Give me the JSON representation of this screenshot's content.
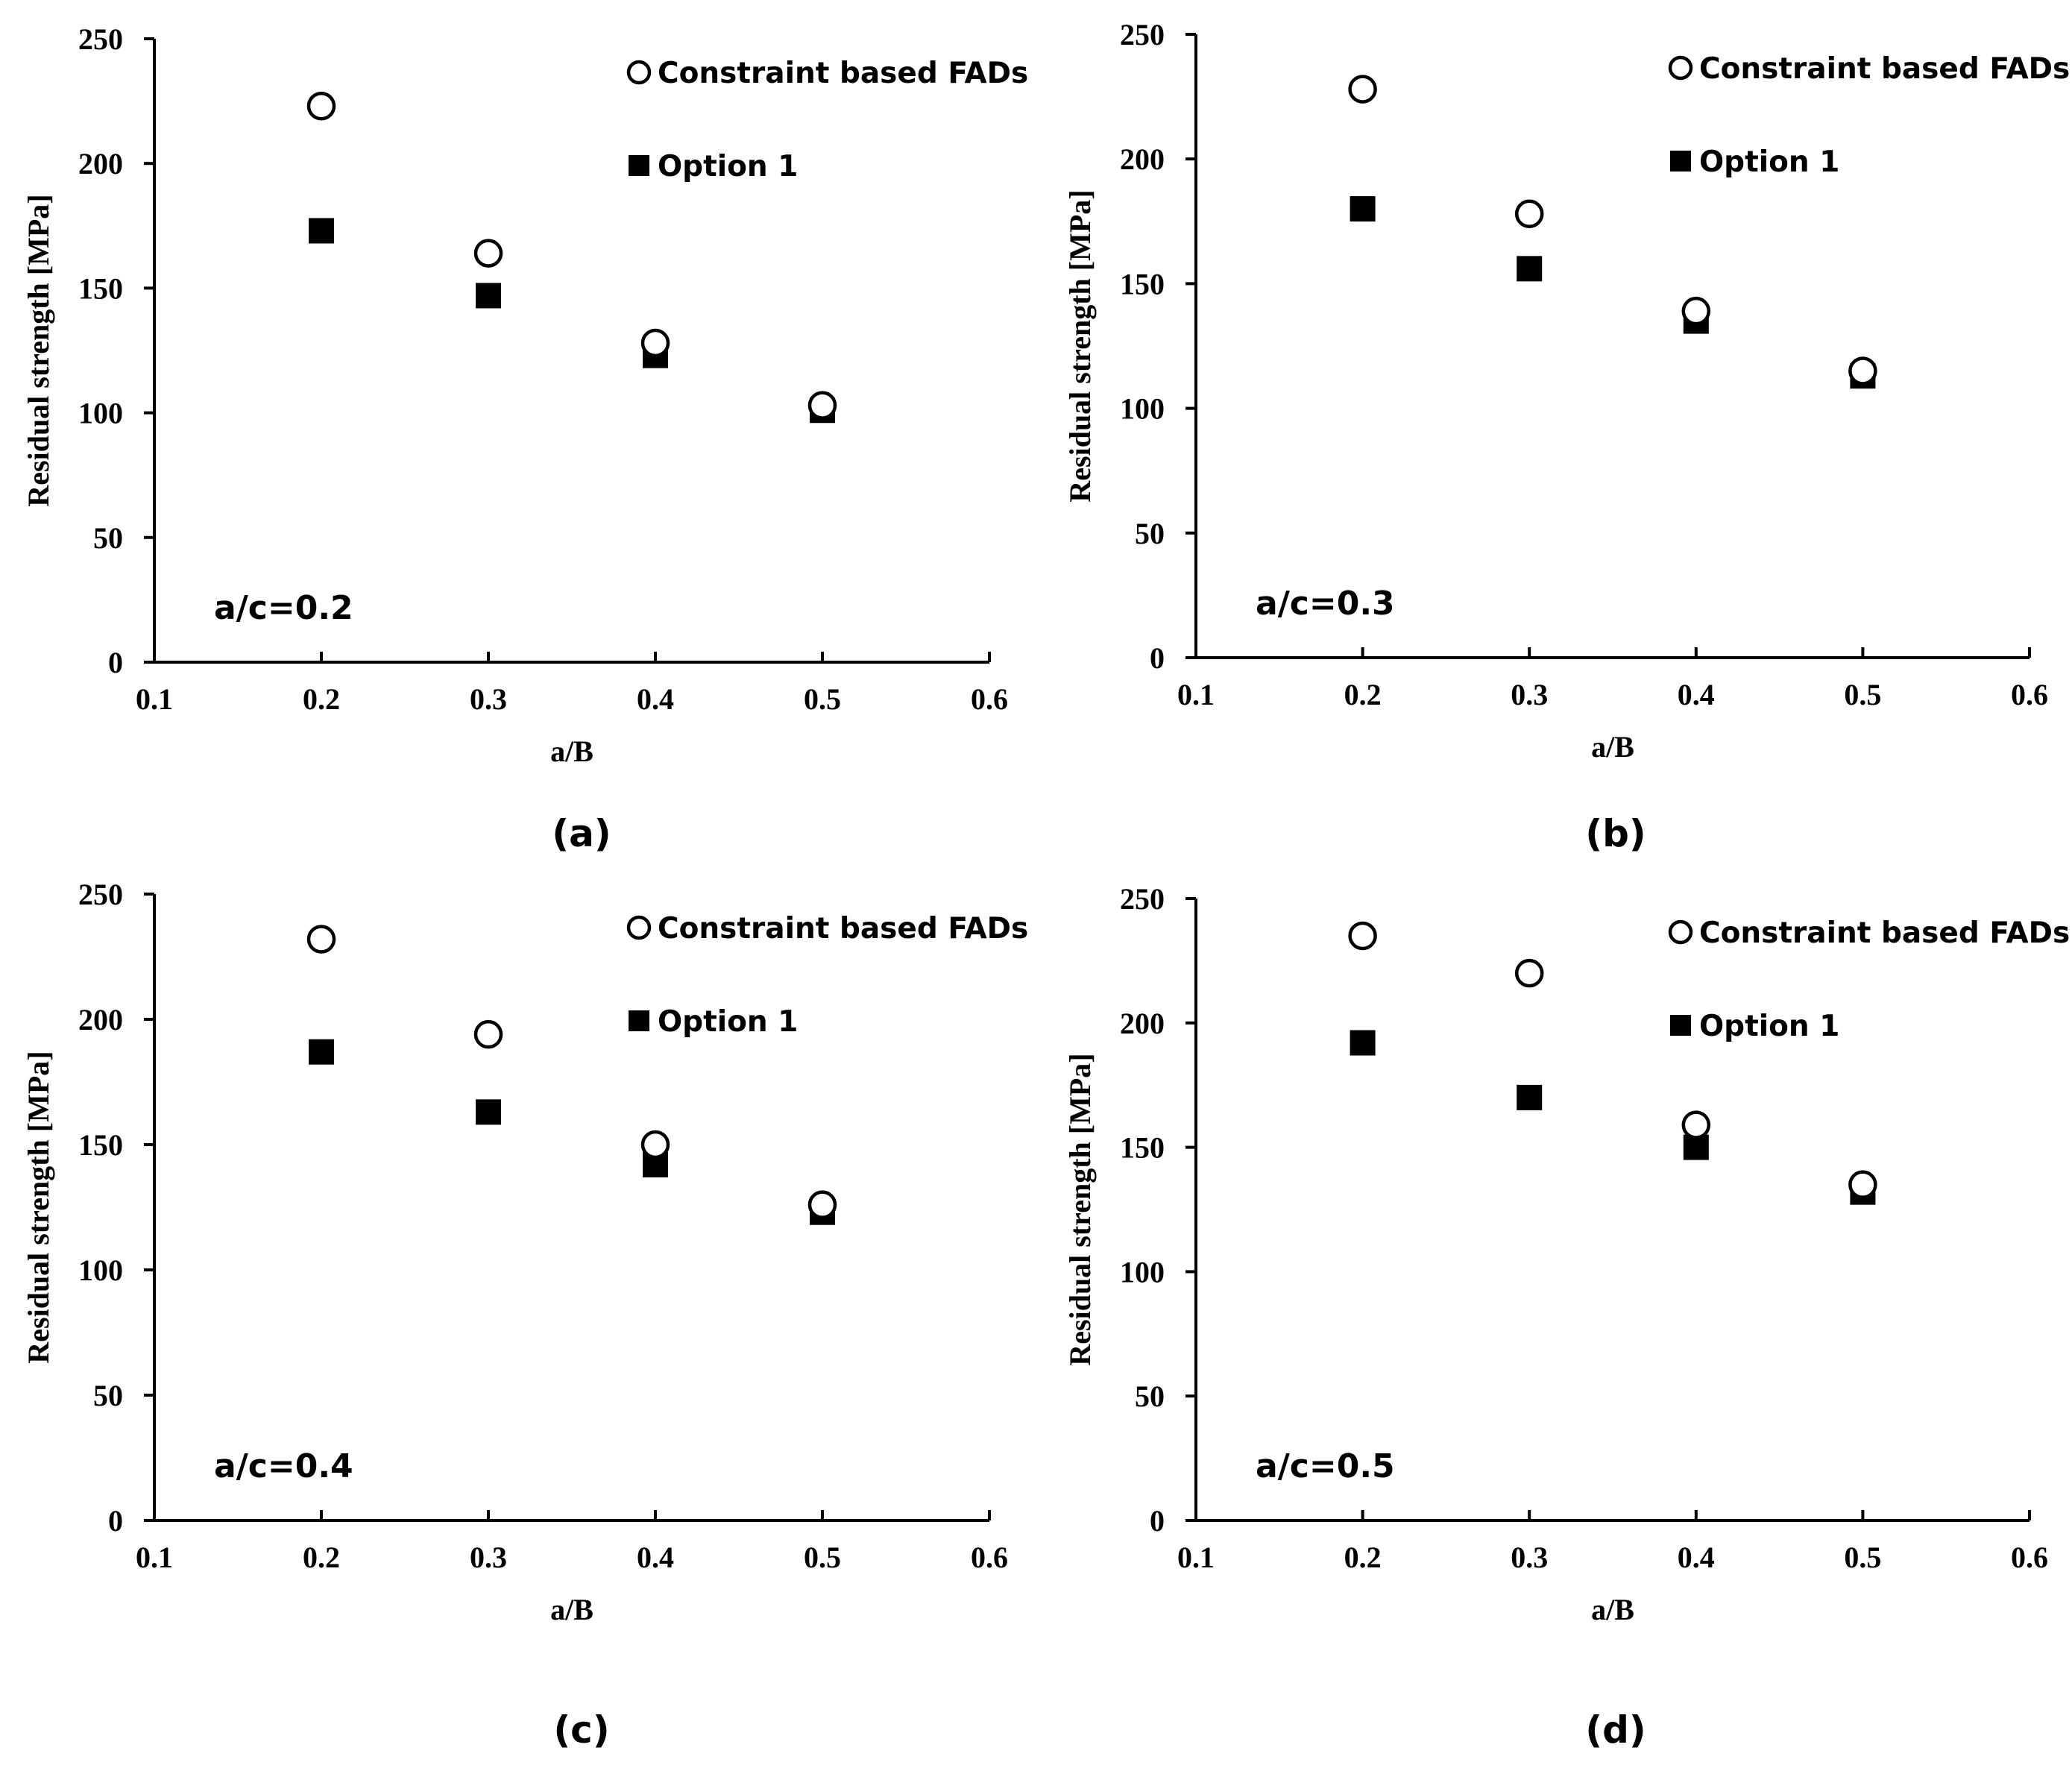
{
  "chart_data": [
    {
      "type": "scatter",
      "panel_label": "(a)",
      "annotation": "a/c=0.2",
      "xlabel": "a/B",
      "ylabel": "Residual strength [MPa]",
      "xlim": [
        0.1,
        0.6
      ],
      "ylim": [
        0,
        250
      ],
      "xticks": [
        "0.1",
        "0.2",
        "0.3",
        "0.4",
        "0.5",
        "0.6"
      ],
      "yticks": [
        "0",
        "50",
        "100",
        "150",
        "200",
        "250"
      ],
      "legend_position": "top-right",
      "series": [
        {
          "name": "Constraint based FADs",
          "marker": "open-circle",
          "x": [
            0.2,
            0.3,
            0.4,
            0.5
          ],
          "y": [
            223,
            164,
            128,
            103
          ]
        },
        {
          "name": "Option 1",
          "marker": "filled-square",
          "x": [
            0.2,
            0.3,
            0.4,
            0.5
          ],
          "y": [
            173,
            147,
            123,
            101
          ]
        }
      ]
    },
    {
      "type": "scatter",
      "panel_label": "(b)",
      "annotation": "a/c=0.3",
      "xlabel": "a/B",
      "ylabel": "Residual strength [MPa]",
      "xlim": [
        0.1,
        0.6
      ],
      "ylim": [
        0,
        250
      ],
      "xticks": [
        "0.1",
        "0.2",
        "0.3",
        "0.4",
        "0.5",
        "0.6"
      ],
      "yticks": [
        "0",
        "50",
        "100",
        "150",
        "200",
        "250"
      ],
      "legend_position": "top-right",
      "series": [
        {
          "name": "Constraint based FADs",
          "marker": "open-circle",
          "x": [
            0.2,
            0.3,
            0.4,
            0.5
          ],
          "y": [
            228,
            178,
            139,
            115
          ]
        },
        {
          "name": "Option 1",
          "marker": "filled-square",
          "x": [
            0.2,
            0.3,
            0.4,
            0.5
          ],
          "y": [
            180,
            156,
            135,
            113
          ]
        }
      ]
    },
    {
      "type": "scatter",
      "panel_label": "(c)",
      "annotation": "a/c=0.4",
      "xlabel": "a/B",
      "ylabel": "Residual strength [MPa]",
      "xlim": [
        0.1,
        0.6
      ],
      "ylim": [
        0,
        250
      ],
      "xticks": [
        "0.1",
        "0.2",
        "0.3",
        "0.4",
        "0.5",
        "0.6"
      ],
      "yticks": [
        "0",
        "50",
        "100",
        "150",
        "200",
        "250"
      ],
      "legend_position": "top-right",
      "series": [
        {
          "name": "Constraint based FADs",
          "marker": "open-circle",
          "x": [
            0.2,
            0.3,
            0.4,
            0.5
          ],
          "y": [
            232,
            194,
            150,
            126
          ]
        },
        {
          "name": "Option 1",
          "marker": "filled-square",
          "x": [
            0.2,
            0.3,
            0.4,
            0.5
          ],
          "y": [
            187,
            163,
            142,
            123
          ]
        }
      ]
    },
    {
      "type": "scatter",
      "panel_label": "(d)",
      "annotation": "a/c=0.5",
      "xlabel": "a/B",
      "ylabel": "Residual strength [MPa]",
      "xlim": [
        0.1,
        0.6
      ],
      "ylim": [
        0,
        250
      ],
      "xticks": [
        "0.1",
        "0.2",
        "0.3",
        "0.4",
        "0.5",
        "0.6"
      ],
      "yticks": [
        "0",
        "50",
        "100",
        "150",
        "200",
        "250"
      ],
      "legend_position": "top-right",
      "series": [
        {
          "name": "Constraint based FADs",
          "marker": "open-circle",
          "x": [
            0.2,
            0.3,
            0.4,
            0.5
          ],
          "y": [
            235,
            220,
            159,
            135
          ]
        },
        {
          "name": "Option 1",
          "marker": "filled-square",
          "x": [
            0.2,
            0.3,
            0.4,
            0.5
          ],
          "y": [
            192,
            170,
            150,
            132
          ]
        }
      ]
    }
  ]
}
